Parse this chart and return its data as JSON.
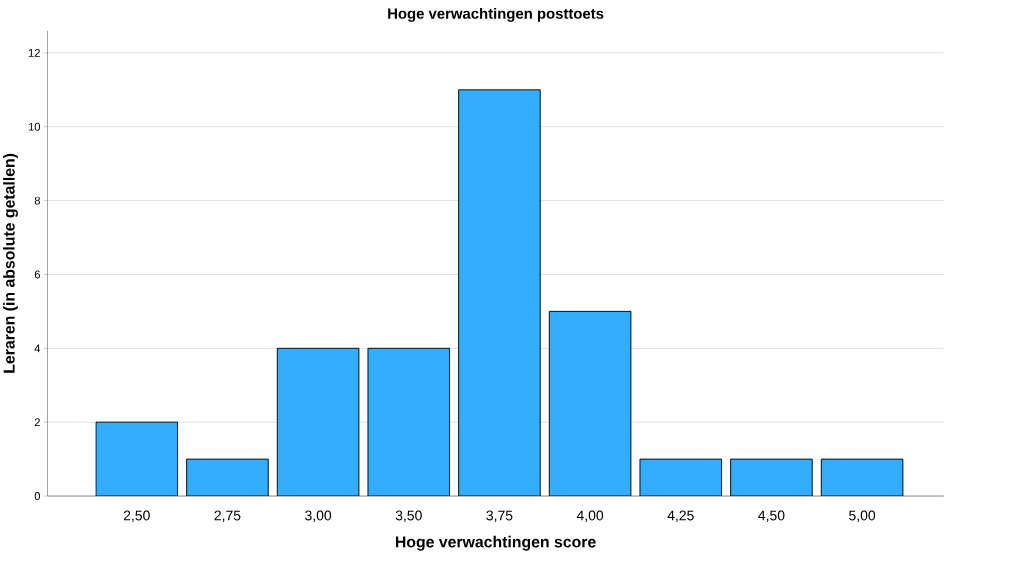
{
  "chart_data": {
    "type": "bar",
    "title": "Hoge verwachtingen posttoets",
    "xlabel": "Hoge verwachtingen score",
    "ylabel": "Leraren (in absolute getallen)",
    "categories": [
      "2,50",
      "2,75",
      "3,00",
      "3,50",
      "3,75",
      "4,00",
      "4,25",
      "4,50",
      "5,00"
    ],
    "values": [
      2,
      1,
      4,
      4,
      11,
      5,
      1,
      1,
      1
    ],
    "color": "#33adff",
    "ylim": [
      0,
      12.6
    ],
    "yticks": [
      0,
      2,
      4,
      6,
      8,
      10,
      12
    ],
    "grid": "y"
  }
}
